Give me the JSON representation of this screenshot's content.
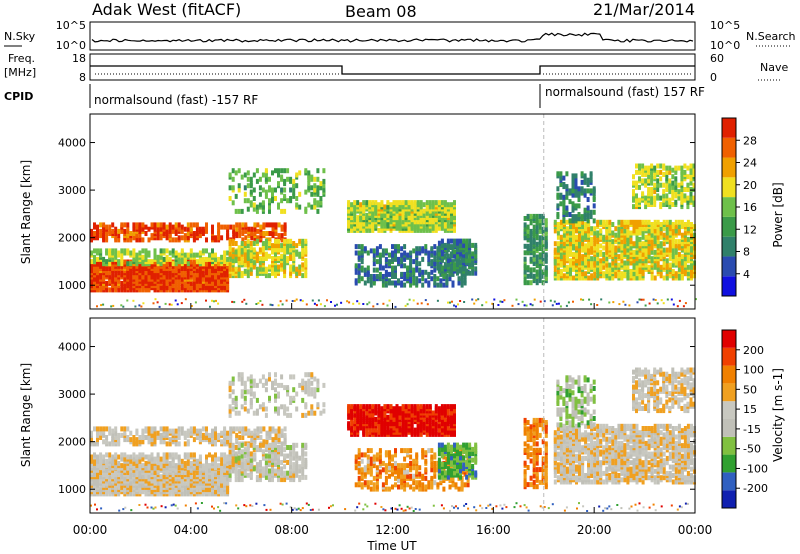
{
  "header": {
    "station": "Adak West (fitACF)",
    "beam": "Beam 08",
    "date": "21/Mar/2014"
  },
  "aux_panels": {
    "nsky_label": "N.Sky",
    "nsearch_label": "N.Search",
    "noise_ticks_left": [
      "10^5",
      "10^0"
    ],
    "noise_ticks_right": [
      "10^5",
      "10^0"
    ],
    "freq_label_1": "Freq.",
    "freq_label_2": "[MHz]",
    "freq_ticks": [
      "18",
      "8"
    ],
    "nave_label": "Nave",
    "nave_ticks": [
      "60",
      "0"
    ],
    "cpid_label": "CPID",
    "cpid_segments": [
      "normalsound (fast) -157 RF",
      "normalsound (fast) 157 RF"
    ]
  },
  "x_axis": {
    "label": "Time UT",
    "ticks": [
      "00:00",
      "04:00",
      "08:00",
      "12:00",
      "16:00",
      "20:00",
      "00:00"
    ]
  },
  "colors": {
    "power_scale": [
      "#1010e0",
      "#2a4bb0",
      "#30806a",
      "#3a9a48",
      "#6ec04a",
      "#f0e020",
      "#f0a000",
      "#f06000",
      "#e02000"
    ],
    "velocity_scale": [
      "#e00000",
      "#f04000",
      "#f08000",
      "#f0a020",
      "#c8c8c0",
      "#c0c0b8",
      "#80c040",
      "#30a030",
      "#3060c0",
      "#1020b0"
    ]
  },
  "chart_data": [
    {
      "type": "heatmap",
      "title": "Power",
      "ylabel": "Slant Range [km]",
      "xlabel": "",
      "y_ticks": [
        "1000",
        "2000",
        "3000",
        "4000"
      ],
      "ylim": [
        500,
        4600
      ],
      "xlim_hours": [
        0,
        24
      ],
      "colorbar_label": "Power [dB]",
      "colorbar_ticks": [
        "4",
        "8",
        "12",
        "16",
        "20",
        "24",
        "28"
      ],
      "colorbar_range": [
        0,
        30
      ]
    },
    {
      "type": "heatmap",
      "title": "Velocity",
      "ylabel": "Slant Range [km]",
      "xlabel": "Time UT",
      "y_ticks": [
        "1000",
        "2000",
        "3000",
        "4000"
      ],
      "ylim": [
        500,
        4600
      ],
      "xlim_hours": [
        0,
        24
      ],
      "colorbar_label": "Velocity [m s-1]",
      "colorbar_ticks": [
        "200",
        "100",
        "50",
        "15",
        "-15",
        "-50",
        "-100",
        "-200"
      ],
      "colorbar_range": [
        -250,
        250
      ]
    }
  ]
}
